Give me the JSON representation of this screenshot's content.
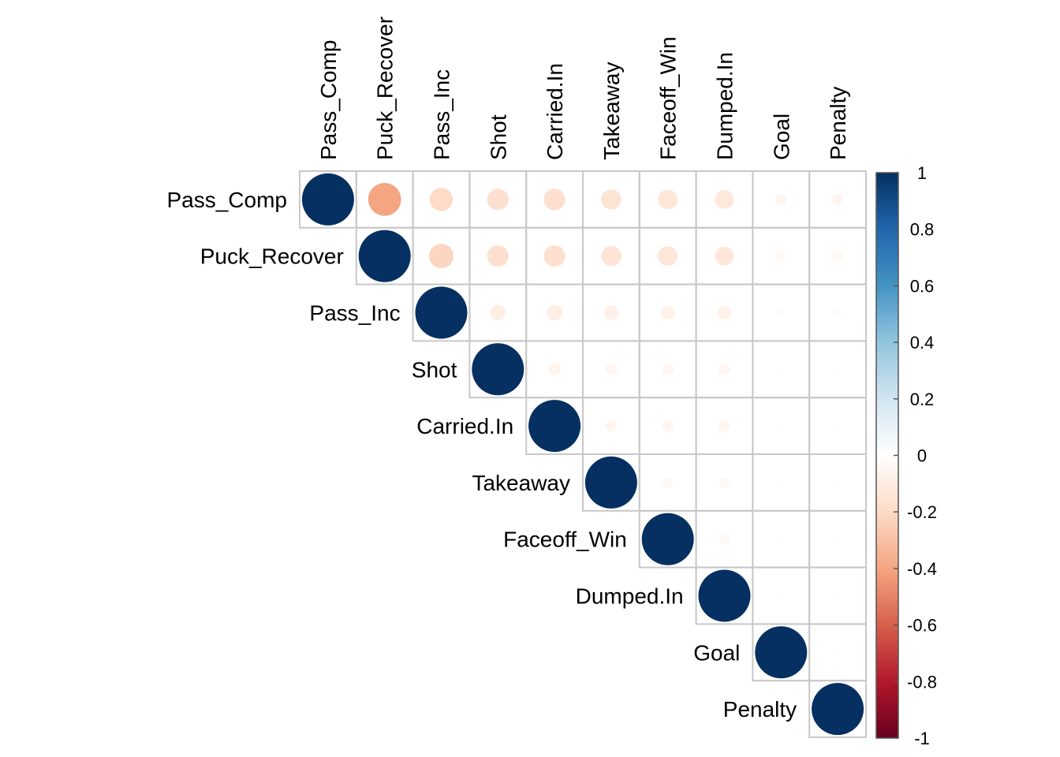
{
  "chart_data": {
    "type": "heatmap",
    "style": "corrplot-circle-upper-triangle",
    "variables": [
      "Pass_Comp",
      "Puck_Recover",
      "Pass_Inc",
      "Shot",
      "Carried.In",
      "Takeaway",
      "Faceoff_Win",
      "Dumped.In",
      "Goal",
      "Penalty"
    ],
    "matrix": [
      [
        1.0,
        -0.4,
        -0.2,
        -0.17,
        -0.17,
        -0.15,
        -0.14,
        -0.13,
        -0.05,
        -0.05
      ],
      [
        -0.4,
        1.0,
        -0.22,
        -0.17,
        -0.17,
        -0.15,
        -0.14,
        -0.13,
        -0.04,
        -0.04
      ],
      [
        -0.2,
        -0.22,
        1.0,
        -0.09,
        -0.09,
        -0.08,
        -0.07,
        -0.07,
        -0.02,
        -0.02
      ],
      [
        -0.17,
        -0.17,
        -0.09,
        1.0,
        -0.06,
        -0.05,
        -0.05,
        -0.05,
        -0.01,
        -0.01
      ],
      [
        -0.17,
        -0.17,
        -0.09,
        -0.06,
        1.0,
        -0.05,
        -0.05,
        -0.05,
        -0.01,
        -0.01
      ],
      [
        -0.15,
        -0.15,
        -0.08,
        -0.05,
        -0.05,
        1.0,
        -0.04,
        -0.04,
        -0.01,
        -0.01
      ],
      [
        -0.14,
        -0.14,
        -0.07,
        -0.05,
        -0.05,
        -0.04,
        1.0,
        -0.04,
        -0.01,
        -0.01
      ],
      [
        -0.13,
        -0.13,
        -0.07,
        -0.05,
        -0.05,
        -0.04,
        -0.04,
        1.0,
        -0.01,
        -0.01
      ],
      [
        -0.05,
        -0.04,
        -0.02,
        -0.01,
        -0.01,
        -0.01,
        -0.01,
        -0.01,
        1.0,
        -0.01
      ],
      [
        -0.05,
        -0.04,
        -0.02,
        -0.01,
        -0.01,
        -0.01,
        -0.01,
        -0.01,
        -0.01,
        1.0
      ]
    ],
    "colorbar": {
      "range": [
        -1,
        1
      ],
      "ticks": [
        "1",
        "0.8",
        "0.6",
        "0.4",
        "0.2",
        "0",
        "-0.2",
        "-0.4",
        "-0.6",
        "-0.8",
        "-1"
      ],
      "colors": [
        "#67001F",
        "#B2182B",
        "#D6604D",
        "#F4A582",
        "#FDDBC7",
        "#FFFFFF",
        "#D1E5F0",
        "#92C5DE",
        "#4393C3",
        "#2166AC",
        "#053061"
      ]
    },
    "grid": true,
    "legend_position": "right"
  }
}
